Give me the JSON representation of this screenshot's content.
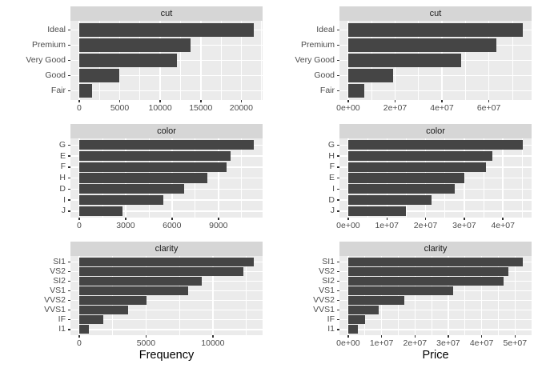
{
  "figure": {
    "background": "#ffffff",
    "description": "Faceted horizontal bar charts: Frequency and total Price by cut, color and clarity"
  },
  "style": {
    "bar_fill": "#454545",
    "panel_bg": "#EBEBEB",
    "strip_bg": "#D6D6D6",
    "strip_text": "#1A1A1A",
    "grid_color": "#FFFFFF",
    "tick_text": "#4D4D4D",
    "tick_mark": "#333333",
    "axis_title_text": "#000000"
  },
  "chart_data": [
    {
      "id": "cut-frequency",
      "type": "bar",
      "orientation": "horizontal",
      "facet": "cut",
      "grid": {
        "row": 0,
        "col": 0
      },
      "categories": [
        "Ideal",
        "Premium",
        "Very Good",
        "Good",
        "Fair"
      ],
      "values": [
        21551,
        13791,
        12082,
        4906,
        1610
      ],
      "xlim": [
        0,
        21551
      ],
      "xticks": {
        "values": [
          0,
          5000,
          10000,
          15000,
          20000
        ],
        "labels": [
          "0",
          "5000",
          "10000",
          "15000",
          "20000"
        ]
      },
      "xlabel": ""
    },
    {
      "id": "cut-price",
      "type": "bar",
      "orientation": "horizontal",
      "facet": "cut",
      "grid": {
        "row": 0,
        "col": 1
      },
      "categories": [
        "Ideal",
        "Premium",
        "Very Good",
        "Good",
        "Fair"
      ],
      "values": [
        74513487,
        63221498,
        48107623,
        19275009,
        7017600
      ],
      "xlim": [
        0,
        74513487
      ],
      "xticks": {
        "values": [
          0,
          20000000,
          40000000,
          60000000
        ],
        "labels": [
          "0e+00",
          "2e+07",
          "4e+07",
          "6e+07"
        ]
      },
      "xlabel": ""
    },
    {
      "id": "color-frequency",
      "type": "bar",
      "orientation": "horizontal",
      "facet": "color",
      "grid": {
        "row": 1,
        "col": 0
      },
      "categories": [
        "G",
        "E",
        "F",
        "H",
        "D",
        "I",
        "J"
      ],
      "values": [
        11292,
        9797,
        9542,
        8304,
        6775,
        5422,
        2808
      ],
      "xlim": [
        0,
        11292
      ],
      "xticks": {
        "values": [
          0,
          3000,
          6000,
          9000
        ],
        "labels": [
          "0",
          "3000",
          "6000",
          "9000"
        ]
      },
      "xlabel": ""
    },
    {
      "id": "color-price",
      "type": "bar",
      "orientation": "horizontal",
      "facet": "color",
      "grid": {
        "row": 1,
        "col": 1
      },
      "categories": [
        "G",
        "H",
        "F",
        "E",
        "I",
        "D",
        "J"
      ],
      "values": [
        45158240,
        37257301,
        35542866,
        30142944,
        27608146,
        21476439,
        14949281
      ],
      "xlim": [
        0,
        45158240
      ],
      "xticks": {
        "values": [
          0,
          10000000,
          20000000,
          30000000,
          40000000
        ],
        "labels": [
          "0e+00",
          "1e+07",
          "2e+07",
          "3e+07",
          "4e+07"
        ]
      },
      "xlabel": ""
    },
    {
      "id": "clarity-frequency",
      "type": "bar",
      "orientation": "horizontal",
      "facet": "clarity",
      "grid": {
        "row": 2,
        "col": 0
      },
      "categories": [
        "SI1",
        "VS2",
        "SI2",
        "VS1",
        "VVS2",
        "VVS1",
        "IF",
        "I1"
      ],
      "values": [
        13065,
        12258,
        9194,
        8171,
        5066,
        3655,
        1790,
        741
      ],
      "xlim": [
        0,
        13065
      ],
      "xticks": {
        "values": [
          0,
          5000,
          10000
        ],
        "labels": [
          "0",
          "5000",
          "10000"
        ]
      },
      "xlabel": "Frequency"
    },
    {
      "id": "clarity-price",
      "type": "bar",
      "orientation": "horizontal",
      "facet": "clarity",
      "grid": {
        "row": 2,
        "col": 1
      },
      "categories": [
        "SI1",
        "VS2",
        "SI2",
        "VS1",
        "VVS2",
        "VVS1",
        "IF",
        "I1"
      ],
      "values": [
        52352898,
        48107284,
        46577764,
        31572114,
        16851033,
        9227063,
        5175207,
        2913085
      ],
      "xlim": [
        0,
        52352898
      ],
      "xticks": {
        "values": [
          0,
          10000000,
          20000000,
          30000000,
          40000000,
          50000000
        ],
        "labels": [
          "0e+00",
          "1e+07",
          "2e+07",
          "3e+07",
          "4e+07",
          "5e+07"
        ]
      },
      "xlabel": "Price"
    }
  ]
}
